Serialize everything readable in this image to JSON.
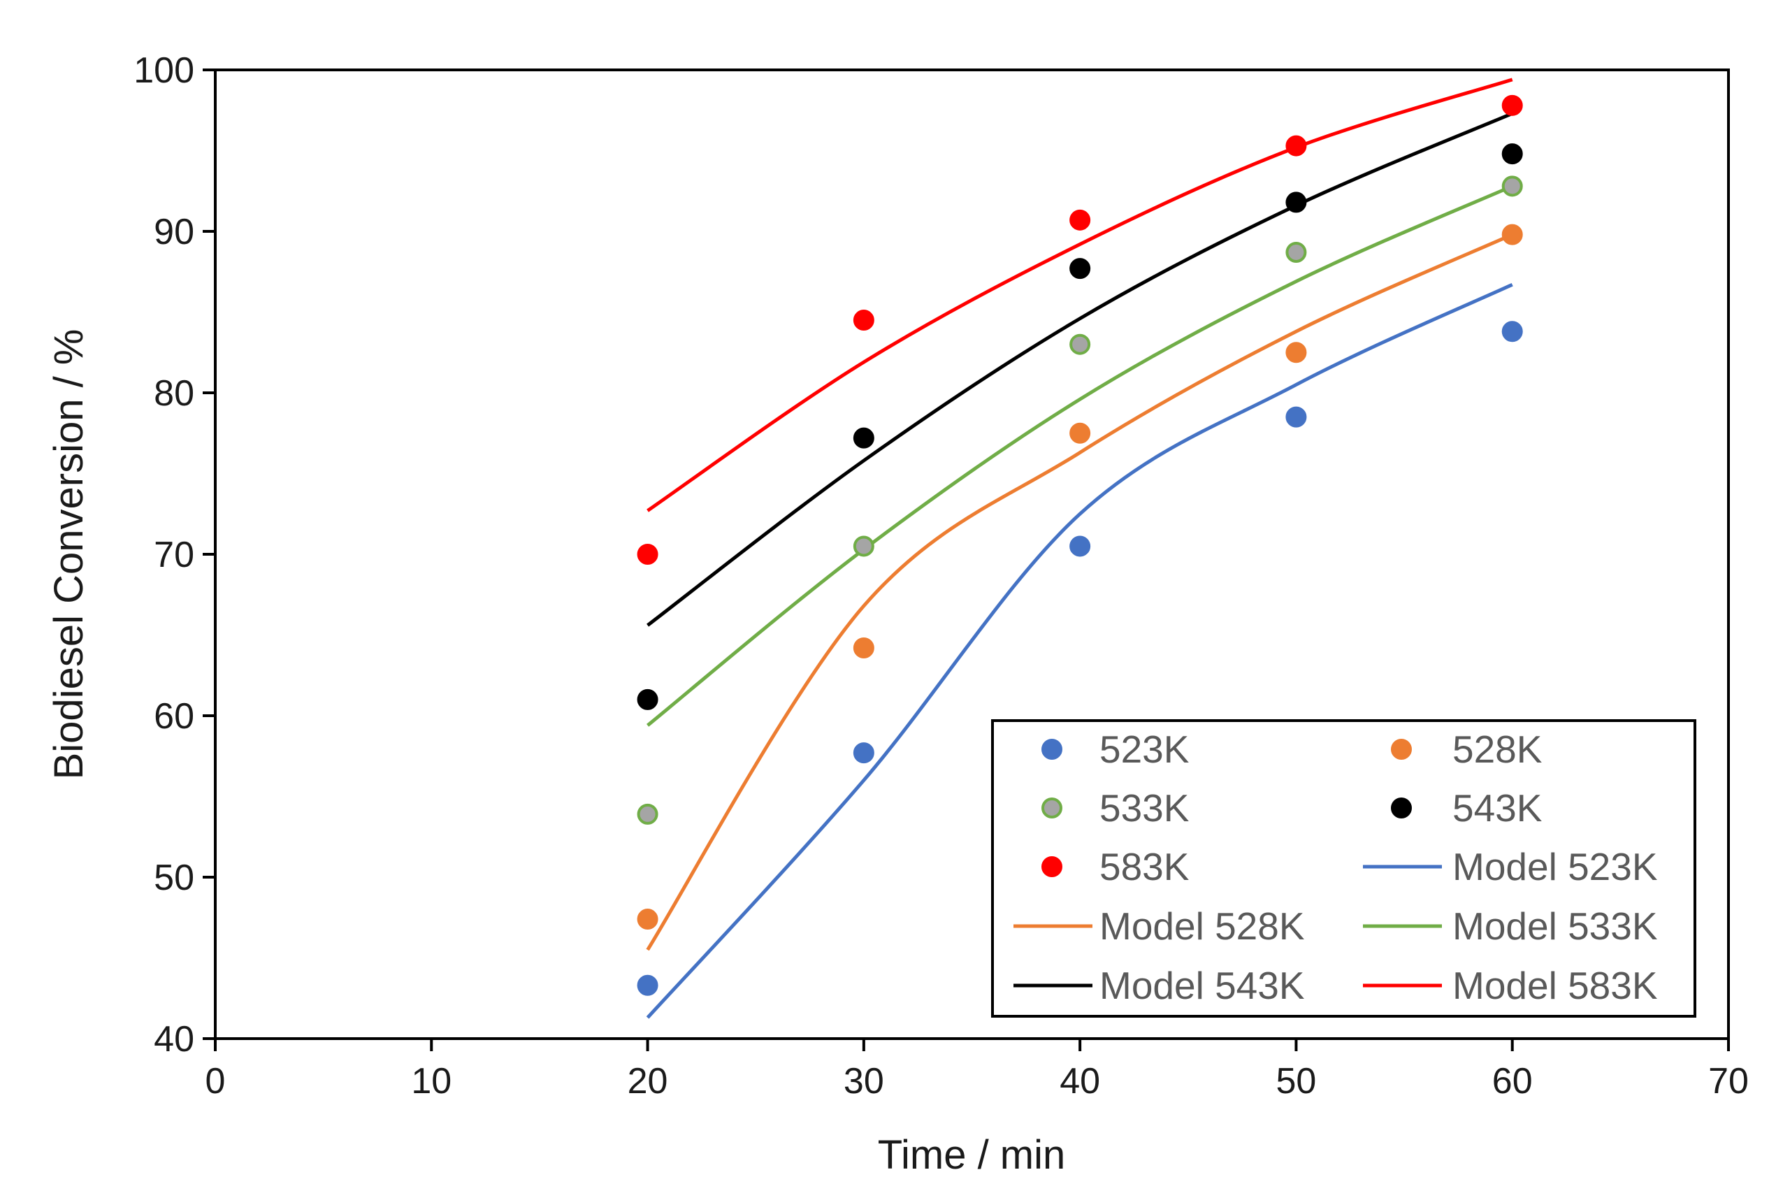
{
  "chart_data": {
    "type": "scatter",
    "title": "",
    "xlabel": "Time / min",
    "ylabel": "Biodiesel Conversion / %",
    "xlim": [
      0,
      70
    ],
    "ylim": [
      40,
      100
    ],
    "xticks": [
      0,
      10,
      20,
      30,
      40,
      50,
      60,
      70
    ],
    "yticks": [
      40,
      50,
      60,
      70,
      80,
      90,
      100
    ],
    "grid": false,
    "legend_position": "bottom-right",
    "series": [
      {
        "name": "523K",
        "kind": "markers",
        "color": "#4472C4",
        "edge": "#4472C4",
        "x": [
          20,
          30,
          40,
          50,
          60
        ],
        "y": [
          43.3,
          57.7,
          70.5,
          78.5,
          83.8
        ]
      },
      {
        "name": "528K",
        "kind": "markers",
        "color": "#ED7D31",
        "edge": "#ED7D31",
        "x": [
          20,
          30,
          40,
          50,
          60
        ],
        "y": [
          47.4,
          64.2,
          77.5,
          82.5,
          89.8
        ]
      },
      {
        "name": "533K",
        "kind": "markers",
        "color": "#A5A5A5",
        "edge": "#70AD47",
        "x": [
          20,
          30,
          40,
          50,
          60
        ],
        "y": [
          53.9,
          70.5,
          83.0,
          88.7,
          92.8
        ]
      },
      {
        "name": "543K",
        "kind": "markers",
        "color": "#000000",
        "edge": "#000000",
        "x": [
          20,
          30,
          40,
          50,
          60
        ],
        "y": [
          61.0,
          77.2,
          87.7,
          91.8,
          94.8
        ]
      },
      {
        "name": "583K",
        "kind": "markers",
        "color": "#FF0000",
        "edge": "#FF0000",
        "x": [
          20,
          30,
          40,
          50,
          60
        ],
        "y": [
          70.0,
          84.5,
          90.7,
          95.3,
          97.8
        ]
      },
      {
        "name": "Model 523K",
        "kind": "line",
        "color": "#4472C4",
        "x": [
          20,
          30,
          40,
          50,
          60
        ],
        "y": [
          41.3,
          56.0,
          72.5,
          80.5,
          86.7
        ]
      },
      {
        "name": "Model 528K",
        "kind": "line",
        "color": "#ED7D31",
        "x": [
          20,
          30,
          40,
          50,
          60
        ],
        "y": [
          45.5,
          66.8,
          76.3,
          83.8,
          89.8
        ]
      },
      {
        "name": "Model 533K",
        "kind": "line",
        "color": "#70AD47",
        "x": [
          20,
          30,
          40,
          50,
          60
        ],
        "y": [
          59.4,
          70.3,
          79.6,
          86.9,
          92.8
        ]
      },
      {
        "name": "Model 543K",
        "kind": "line",
        "color": "#000000",
        "x": [
          20,
          30,
          40,
          50,
          60
        ],
        "y": [
          65.6,
          75.8,
          84.6,
          91.6,
          97.3
        ]
      },
      {
        "name": "Model 583K",
        "kind": "line",
        "color": "#FF0000",
        "x": [
          20,
          30,
          40,
          50,
          60
        ],
        "y": [
          72.7,
          81.9,
          89.2,
          95.2,
          99.4
        ]
      }
    ]
  }
}
